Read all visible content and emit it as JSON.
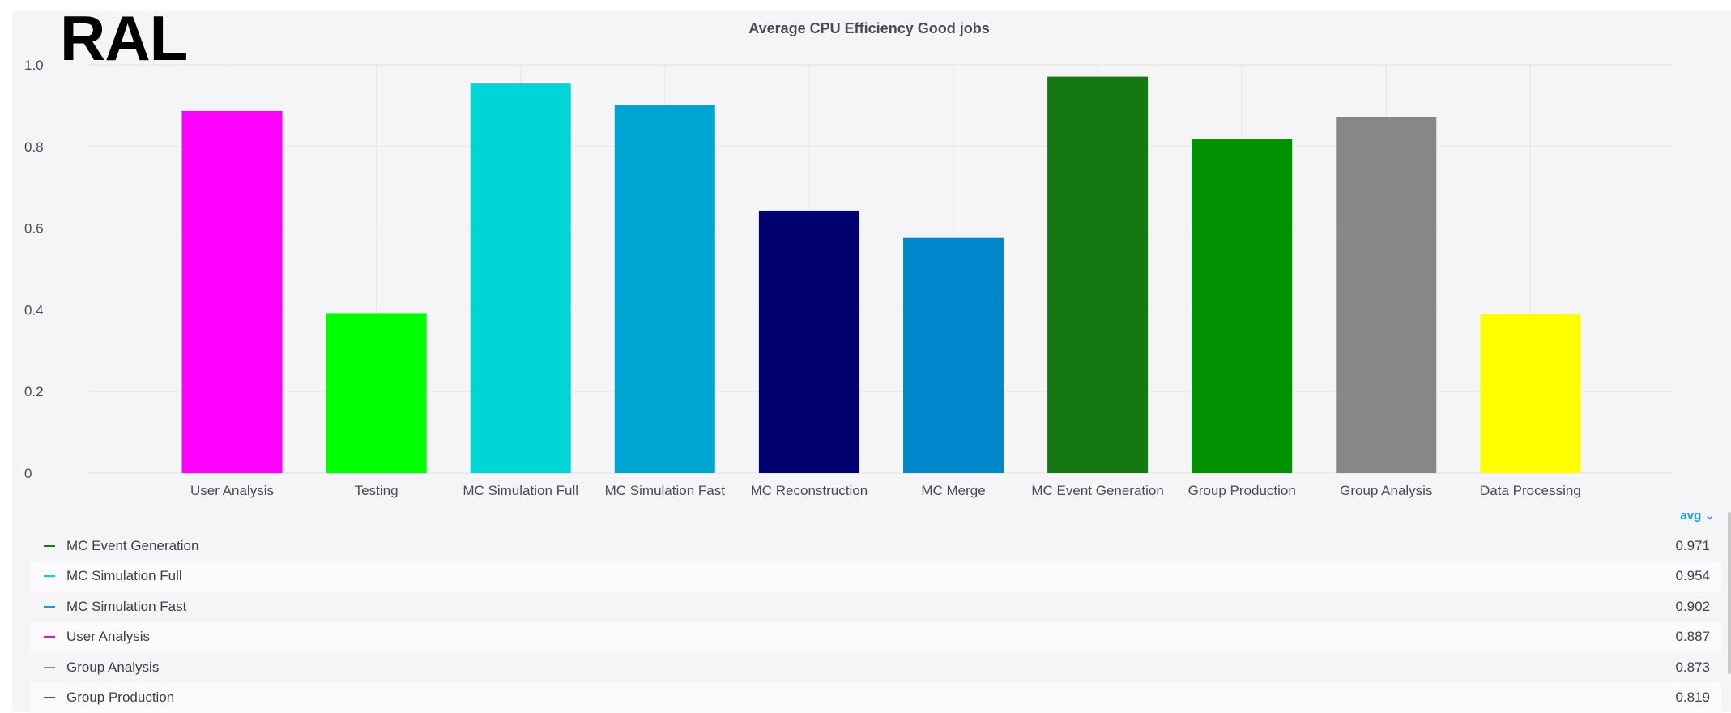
{
  "site_label": "RAL",
  "chart_data": {
    "type": "bar",
    "title": "Average CPU Efficiency Good jobs",
    "categories": [
      "User Analysis",
      "Testing",
      "MC Simulation Full",
      "MC Simulation Fast",
      "MC Reconstruction",
      "MC Merge",
      "MC Event Generation",
      "Group Production",
      "Group Analysis",
      "Data Processing"
    ],
    "values": [
      0.887,
      0.392,
      0.954,
      0.902,
      0.643,
      0.576,
      0.971,
      0.819,
      0.873,
      0.389
    ],
    "colors": [
      "#ff00ff",
      "#00ff00",
      "#00d5d5",
      "#00a4d3",
      "#000070",
      "#0088cc",
      "#157810",
      "#009100",
      "#878787",
      "#ffff00"
    ],
    "yticks": [
      "0",
      "0.2",
      "0.4",
      "0.6",
      "0.8",
      "1.0"
    ],
    "ylim": [
      0,
      1.0
    ],
    "grid": true
  },
  "legend": {
    "calc_label": "avg ⌄",
    "items": [
      {
        "name": "MC Event Generation",
        "value": "0.971",
        "color": "#157810"
      },
      {
        "name": "MC Simulation Full",
        "value": "0.954",
        "color": "#00d5d5"
      },
      {
        "name": "MC Simulation Fast",
        "value": "0.902",
        "color": "#00a4d3"
      },
      {
        "name": "User Analysis",
        "value": "0.887",
        "color": "#ff00ff"
      },
      {
        "name": "Group Analysis",
        "value": "0.873",
        "color": "#878787"
      },
      {
        "name": "Group Production",
        "value": "0.819",
        "color": "#009100"
      }
    ]
  }
}
